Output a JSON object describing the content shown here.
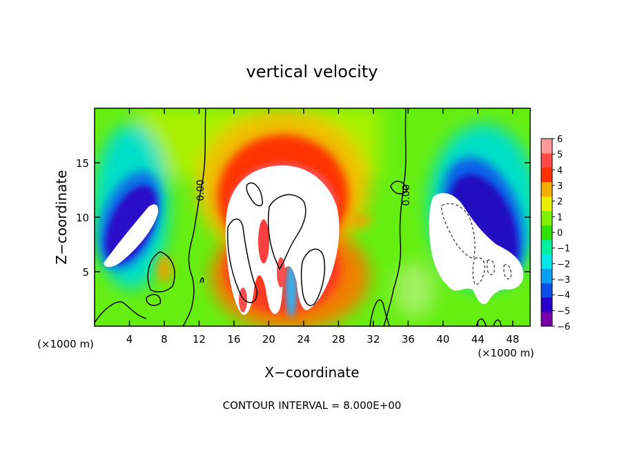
{
  "chart_data": {
    "type": "heatmap",
    "title": "vertical velocity",
    "xlabel": "X−coordinate",
    "ylabel": "Z−coordinate",
    "x_unit_left": "(×1000 m)",
    "x_unit_right": "(×1000 m)",
    "footer": "CONTOUR INTERVAL = 8.000E+00",
    "xlim": [
      0,
      50
    ],
    "ylim": [
      0,
      20
    ],
    "x_ticks": [
      {
        "value": 4,
        "label": "4"
      },
      {
        "value": 8,
        "label": "8"
      },
      {
        "value": 12,
        "label": "12"
      },
      {
        "value": 16,
        "label": "16"
      },
      {
        "value": 20,
        "label": "20"
      },
      {
        "value": 24,
        "label": "24"
      },
      {
        "value": 28,
        "label": "28"
      },
      {
        "value": 32,
        "label": "32"
      },
      {
        "value": 36,
        "label": "36"
      },
      {
        "value": 40,
        "label": "40"
      },
      {
        "value": 44,
        "label": "44"
      },
      {
        "value": 48,
        "label": "48"
      }
    ],
    "y_ticks": [
      {
        "value": 5,
        "label": "5"
      },
      {
        "value": 10,
        "label": "10"
      },
      {
        "value": 15,
        "label": "15"
      }
    ],
    "colorbar": {
      "min": -6,
      "max": 6,
      "ticks": [
        {
          "value": 6,
          "label": "6"
        },
        {
          "value": 5,
          "label": "5"
        },
        {
          "value": 4,
          "label": "4"
        },
        {
          "value": 3,
          "label": "3"
        },
        {
          "value": 2,
          "label": "2"
        },
        {
          "value": 1,
          "label": "1"
        },
        {
          "value": 0,
          "label": "0"
        },
        {
          "value": -1,
          "label": "−1"
        },
        {
          "value": -2,
          "label": "−2"
        },
        {
          "value": -3,
          "label": "−3"
        },
        {
          "value": -4,
          "label": "−4"
        },
        {
          "value": -5,
          "label": "−5"
        },
        {
          "value": -6,
          "label": "−6"
        }
      ],
      "colors": [
        "#7a00a8",
        "#2a00c8",
        "#0a4ee8",
        "#0aa0f0",
        "#00e8e8",
        "#00f0a0",
        "#30e000",
        "#80f000",
        "#e8f000",
        "#f0b000",
        "#ff3000",
        "#ff4a4a",
        "#ff9a9a"
      ]
    },
    "contour_labels": [
      {
        "x": 12.1,
        "y": 12.5,
        "label": "0.00",
        "rotate": -90
      },
      {
        "x": 35.6,
        "y": 12.0,
        "label": "0.00",
        "rotate": -90
      }
    ]
  }
}
